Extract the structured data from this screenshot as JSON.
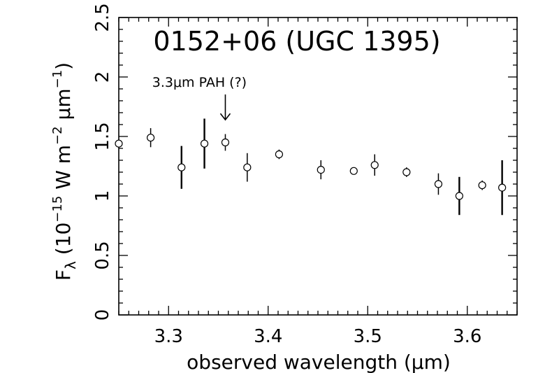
{
  "chart_data": {
    "type": "scatter",
    "title": "0152+06 (UGC 1395)",
    "xlabel": "observed wavelength (μm)",
    "ylabel": "Fλ (10⁻¹⁵ W m⁻² μm⁻¹)",
    "ylabel_parts": {
      "main": "F",
      "sub": "λ",
      "unit_open": " (10",
      "exp1": "−15",
      "unit_mid": " W m",
      "exp2": "−2",
      "unit_mid2": " μm",
      "exp3": "−1",
      "unit_close": ")"
    },
    "xlim": [
      3.25,
      3.65
    ],
    "ylim": [
      0,
      2.5
    ],
    "xticks": [
      "3.3",
      "3.4",
      "3.5",
      "3.6"
    ],
    "yticks": [
      "0",
      "0.5",
      "1",
      "1.5",
      "2",
      "2.5"
    ],
    "annotation": {
      "text": "3.3μm PAH (?)",
      "x": 3.357,
      "y": 1.64
    },
    "grid": false,
    "series": [
      {
        "points": [
          {
            "x": 3.25,
            "y": 1.44,
            "err": 0.0
          },
          {
            "x": 3.282,
            "y": 1.49,
            "err": 0.08
          },
          {
            "x": 3.313,
            "y": 1.24,
            "err": 0.18
          },
          {
            "x": 3.336,
            "y": 1.44,
            "err": 0.21
          },
          {
            "x": 3.357,
            "y": 1.45,
            "err": 0.07
          },
          {
            "x": 3.379,
            "y": 1.24,
            "err": 0.12
          },
          {
            "x": 3.411,
            "y": 1.35,
            "err": 0.04
          },
          {
            "x": 3.453,
            "y": 1.22,
            "err": 0.08
          },
          {
            "x": 3.486,
            "y": 1.21,
            "err": 0.03
          },
          {
            "x": 3.507,
            "y": 1.26,
            "err": 0.09
          },
          {
            "x": 3.539,
            "y": 1.2,
            "err": 0.04
          },
          {
            "x": 3.571,
            "y": 1.1,
            "err": 0.09
          },
          {
            "x": 3.592,
            "y": 1.0,
            "err": 0.16
          },
          {
            "x": 3.615,
            "y": 1.09,
            "err": 0.04
          },
          {
            "x": 3.635,
            "y": 1.07,
            "err": 0.23
          }
        ]
      }
    ]
  }
}
